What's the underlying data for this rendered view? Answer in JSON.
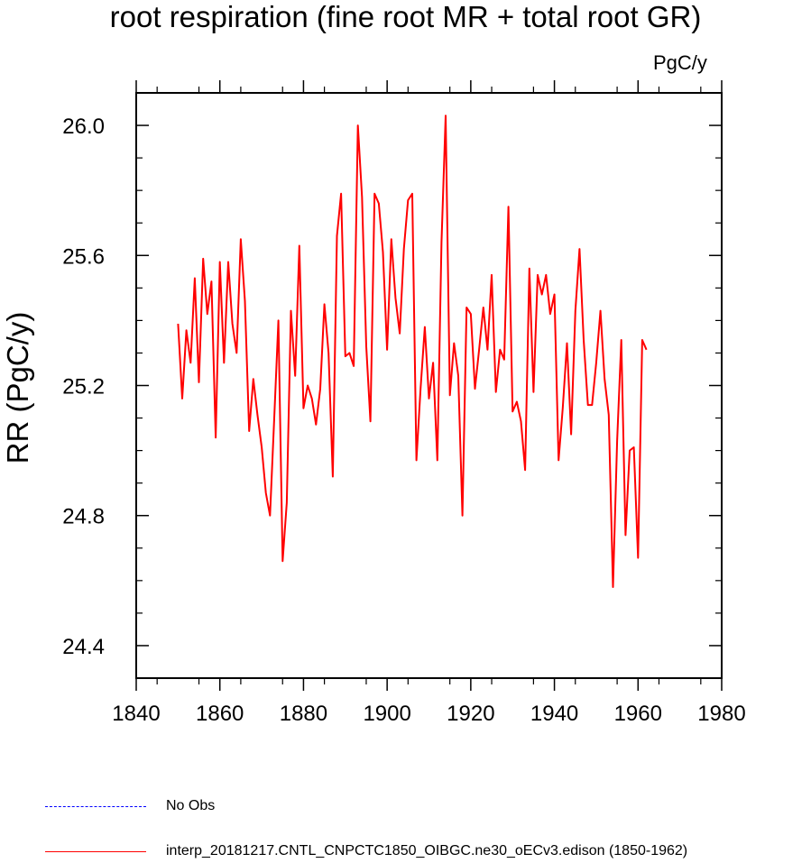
{
  "chart_data": {
    "type": "line",
    "title": "root respiration (fine root MR + total root GR)",
    "units_label": "PgC/y",
    "ylabel": "RR  (PgC/y)",
    "xlabel": "",
    "xlim": [
      1840,
      1980
    ],
    "ylim": [
      24.3,
      26.1
    ],
    "x_ticks": [
      1840,
      1860,
      1880,
      1900,
      1920,
      1940,
      1960,
      1980
    ],
    "y_ticks": [
      24.4,
      24.8,
      25.2,
      25.6,
      26.0
    ],
    "y_tick_labels": [
      "24.4",
      "24.8",
      "25.2",
      "25.6",
      "26.0"
    ],
    "series": [
      {
        "name": "interp_20181217.CNTL_CNPCTC1850_OIBGC.ne30_oECv3.edison (1850-1962)",
        "color": "#ff0000",
        "style": "solid",
        "x_start": 1850,
        "values": [
          25.39,
          25.16,
          25.37,
          25.27,
          25.53,
          25.21,
          25.59,
          25.42,
          25.52,
          25.04,
          25.58,
          25.27,
          25.58,
          25.39,
          25.3,
          25.65,
          25.46,
          25.06,
          25.22,
          25.11,
          25.01,
          24.87,
          24.8,
          25.1,
          25.4,
          24.66,
          24.84,
          25.43,
          25.23,
          25.63,
          25.13,
          25.2,
          25.16,
          25.08,
          25.19,
          25.45,
          25.3,
          24.92,
          25.66,
          25.79,
          25.29,
          25.3,
          25.26,
          26.0,
          25.78,
          25.32,
          25.09,
          25.79,
          25.76,
          25.61,
          25.31,
          25.65,
          25.47,
          25.36,
          25.62,
          25.77,
          25.79,
          24.97,
          25.19,
          25.38,
          25.16,
          25.27,
          24.97,
          25.64,
          26.03,
          25.17,
          25.33,
          25.23,
          24.8,
          25.44,
          25.42,
          25.19,
          25.31,
          25.44,
          25.31,
          25.54,
          25.18,
          25.31,
          25.28,
          25.75,
          25.12,
          25.15,
          25.09,
          24.94,
          25.56,
          25.18,
          25.54,
          25.48,
          25.54,
          25.42,
          25.48,
          24.97,
          25.13,
          25.33,
          25.05,
          25.43,
          25.62,
          25.34,
          25.14,
          25.14,
          25.27,
          25.43,
          25.22,
          25.11,
          24.58,
          25.03,
          25.34,
          24.74,
          25.0,
          25.01,
          24.67,
          25.34,
          25.31
        ]
      },
      {
        "name": "No Obs",
        "color": "#0000ff",
        "style": "dashed",
        "values": []
      }
    ]
  }
}
